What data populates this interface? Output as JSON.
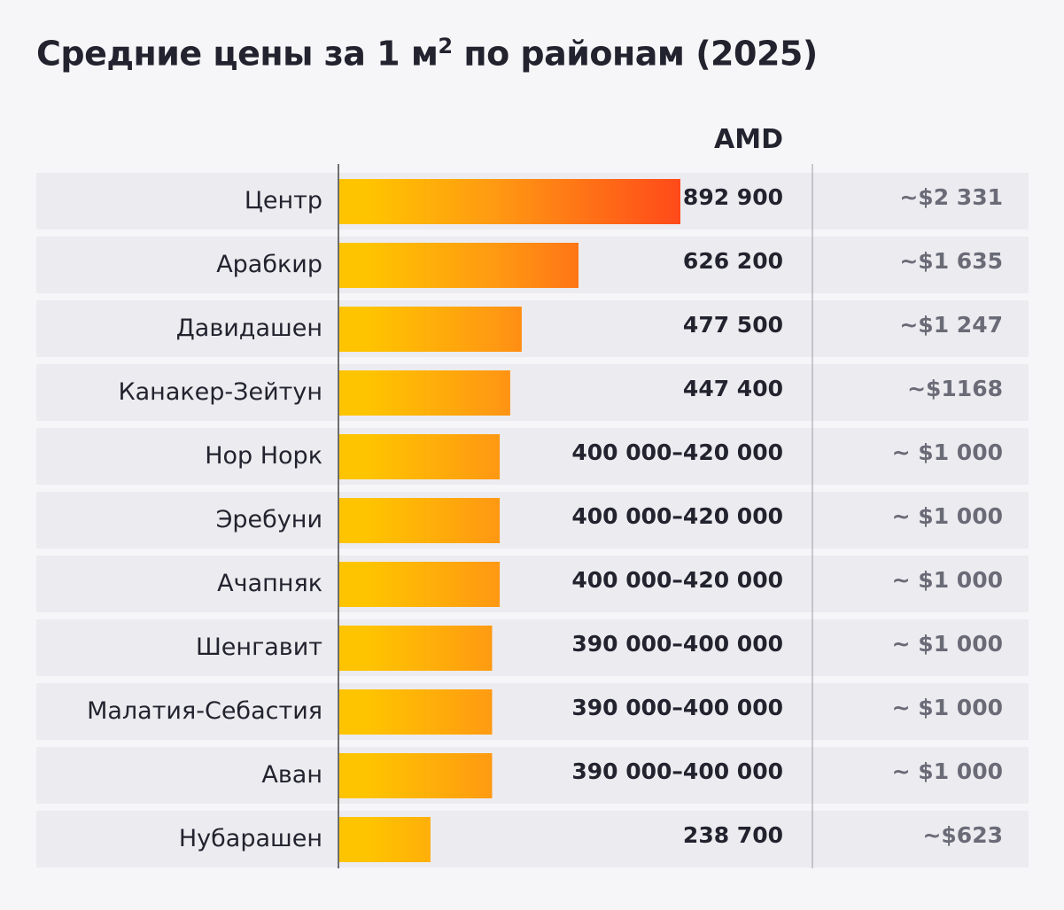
{
  "title_main": "Средние цены за 1 м",
  "title_sup": "2",
  "title_tail": " по районам (2025)",
  "unit_label": "AMD",
  "colors": {
    "bar_start": "#FFC400",
    "bar_end": "#FF4A1A",
    "row_bg": "#ECECF0",
    "page_bg": "#F6F6F9",
    "text": "#23232F",
    "usd_text": "#6B6B78"
  },
  "chart_data": {
    "type": "bar",
    "orientation": "horizontal",
    "categories": [
      "Центр",
      "Арабкир",
      "Давидашен",
      "Канакер-Зейтун",
      "Нор Норк",
      "Эребуни",
      "Ачапняк",
      "Шенгавит",
      "Малатия-Себастия",
      "Аван",
      "Нубарашен"
    ],
    "values": [
      892900,
      626200,
      477500,
      447400,
      420000,
      420000,
      420000,
      400000,
      400000,
      400000,
      238700
    ],
    "amd_labels": [
      "892 900",
      "626 200",
      "477 500",
      "447 400",
      "400 000–420 000",
      "400 000–420 000",
      "400 000–420 000",
      "390 000–400 000",
      "390 000–400 000",
      "390 000–400 000",
      "238 700"
    ],
    "usd_labels": [
      "~$2 331",
      "~$1 635",
      "~$1 247",
      "~$1168",
      "~ $1 000",
      "~ $1 000",
      "~ $1 000",
      "~ $1 000",
      "~ $1 000",
      "~ $1 000",
      "~$623"
    ],
    "xlim": [
      0,
      892900
    ],
    "grid": false
  }
}
